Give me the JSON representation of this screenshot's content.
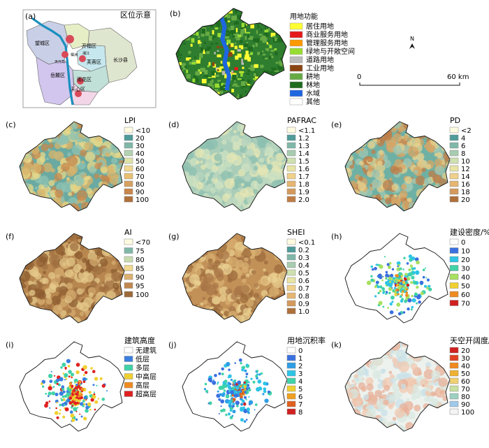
{
  "panel_a": {
    "letter": "(a)",
    "title": "区位示意",
    "districts": [
      "望城区",
      "开福区",
      "芙蓉区",
      "岳麓区",
      "雨花区",
      "天心区",
      "长沙县"
    ],
    "small_labels": [
      "天元岛",
      "橘洲",
      "湘江"
    ]
  },
  "panel_b": {
    "letter": "(b)",
    "legend_title": "用地功能",
    "legend": [
      {
        "label": "居住用地",
        "color": "#ffff33"
      },
      {
        "label": "商业服务用地",
        "color": "#e41a1c"
      },
      {
        "label": "管理服务用地",
        "color": "#ff9900"
      },
      {
        "label": "绿地与开敞空间",
        "color": "#99dd33"
      },
      {
        "label": "道路用地",
        "color": "#bbbbbb"
      },
      {
        "label": "工业用地",
        "color": "#8b4513"
      },
      {
        "label": "耕地",
        "color": "#66aa44"
      },
      {
        "label": "林地",
        "color": "#1f6b1f"
      },
      {
        "label": "水域",
        "color": "#1e66e0"
      },
      {
        "label": "其他",
        "color": "#ffffff"
      }
    ],
    "north": "N",
    "scale_start": "0",
    "scale_end": "60 km"
  },
  "panels": [
    {
      "id": "c",
      "letter": "(c)",
      "title": "LPI",
      "labels": [
        "<10",
        "20",
        "30",
        "40",
        "50",
        "60",
        "70",
        "80",
        "90",
        "100"
      ],
      "colors": [
        "#fffbe0",
        "#4f9c9a",
        "#7fb8a8",
        "#b3d3b0",
        "#dfe3a8",
        "#f0d890",
        "#e8c070",
        "#d6a060",
        "#c8864a",
        "#b0703a"
      ],
      "base": "#6aaaa2",
      "blobs": [
        "#e8d888",
        "#d9b36a",
        "#8fc2b2",
        "#c7884c"
      ]
    },
    {
      "id": "d",
      "letter": "(d)",
      "title": "PAFRAC",
      "labels": [
        "<1.1",
        "1.2",
        "1.3",
        "1.4",
        "1.5",
        "1.6",
        "1.7",
        "1.8",
        "1.9",
        "2.0"
      ],
      "colors": [
        "#fffbe0",
        "#4f9c9a",
        "#7fb8a8",
        "#a8ccb0",
        "#cfe0b0",
        "#e8e4a4",
        "#f0d08a",
        "#e6b672",
        "#d49a5c",
        "#c07e44"
      ],
      "base": "#a9cdb9",
      "blobs": [
        "#cfe2c2",
        "#8cbfb0",
        "#e4e6b4",
        "#b9d6bf"
      ]
    },
    {
      "id": "e",
      "letter": "(e)",
      "title": "PD",
      "labels": [
        "<2",
        "4",
        "6",
        "8",
        "10",
        "12",
        "14",
        "16",
        "18",
        "20"
      ],
      "colors": [
        "#fffbe0",
        "#4f9c9a",
        "#7fb8a8",
        "#a8ccb0",
        "#cfe0b0",
        "#e8e4a4",
        "#f0d08a",
        "#e6b672",
        "#d49a5c",
        "#b0703a"
      ],
      "base": "#6fb0a4",
      "blobs": [
        "#e6d08c",
        "#d7a566",
        "#9ec7b4",
        "#bf7e48"
      ]
    },
    {
      "id": "f",
      "letter": "(f)",
      "title": "AI",
      "labels": [
        "<70",
        "75",
        "80",
        "85",
        "90",
        "95",
        "100"
      ],
      "colors": [
        "#fffbe0",
        "#7fb8a8",
        "#c8dcb0",
        "#f0d890",
        "#dcb070",
        "#c08850",
        "#9c6a3a"
      ],
      "base": "#b88750",
      "blobs": [
        "#e4c88a",
        "#8c5c30",
        "#d4ac70",
        "#a07040"
      ]
    },
    {
      "id": "g",
      "letter": "(g)",
      "title": "SHEI",
      "labels": [
        "<0.1",
        "0.2",
        "0.3",
        "0.4",
        "0.5",
        "0.6",
        "0.7",
        "0.8",
        "0.9",
        "1.0"
      ],
      "colors": [
        "#fffbe0",
        "#4f9c9a",
        "#7fb8a8",
        "#a8ccb0",
        "#cfe0b0",
        "#e8e4a4",
        "#f0d08a",
        "#e6b672",
        "#d49a5c",
        "#b0703a"
      ],
      "base": "#c29158",
      "blobs": [
        "#e8cf90",
        "#9e6c3c",
        "#d8b070",
        "#aa7848"
      ]
    },
    {
      "id": "h",
      "letter": "(h)",
      "title": "建设密度/%",
      "labels": [
        "0",
        "10",
        "20",
        "30",
        "40",
        "50",
        "60",
        "70"
      ],
      "colors": [
        "#ffffff",
        "#3a6fe0",
        "#2ec4e6",
        "#40d2a8",
        "#a8e060",
        "#f0d030",
        "#f08a20",
        "#d02020"
      ],
      "base": "#ffffff",
      "blobs": [
        "#2ec4e6",
        "#40d2a8",
        "#3a6fe0",
        "#a8e060"
      ]
    },
    {
      "id": "i",
      "letter": "(i)",
      "title": "建筑高度",
      "labels": [
        "无建筑",
        "低层",
        "多层",
        "中高层",
        "高层",
        "超高层"
      ],
      "colors": [
        "#ffffff",
        "#3a7fe0",
        "#40d2a8",
        "#f0d030",
        "#f08a20",
        "#e02020"
      ],
      "base": "#ffffff",
      "blobs": [
        "#40d2a8",
        "#e02020",
        "#f0d030",
        "#3a7fe0"
      ]
    },
    {
      "id": "j",
      "letter": "(j)",
      "title": "用地沉积率",
      "labels": [
        "0",
        "1",
        "2",
        "3",
        "4",
        "5",
        "6",
        "7",
        "8"
      ],
      "colors": [
        "#ffffff",
        "#3a6fe0",
        "#2e9ee6",
        "#2ec4e6",
        "#40d2a8",
        "#f0d030",
        "#f0a020",
        "#e06020",
        "#d02020"
      ],
      "base": "#ffffff",
      "blobs": [
        "#3a6fe0",
        "#2e9ee6",
        "#2ec4e6",
        "#40d2a8"
      ]
    },
    {
      "id": "k",
      "letter": "(k)",
      "title": "天空开阔度/%",
      "labels": [
        "20",
        "30",
        "40",
        "50",
        "60",
        "70",
        "80",
        "90",
        "100"
      ],
      "colors": [
        "#d02020",
        "#e04020",
        "#f08a20",
        "#f0b030",
        "#f0d070",
        "#c8e0a0",
        "#9cd0c0",
        "#a0c8e8",
        "#f4f4f4"
      ],
      "base": "#eef2ee",
      "blobs": [
        "#d8e8e0",
        "#f0c8b0",
        "#c8e0e8",
        "#e8b098"
      ]
    }
  ]
}
